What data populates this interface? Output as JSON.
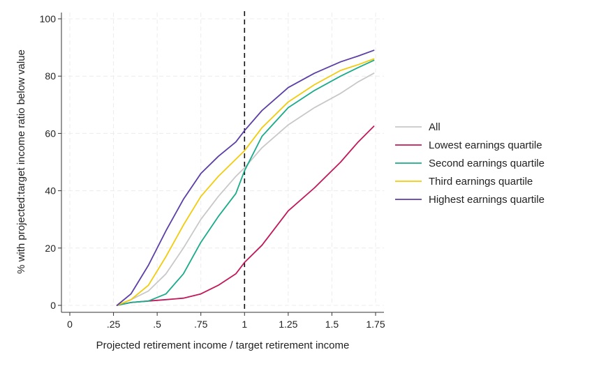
{
  "chart_data": {
    "type": "line",
    "title": "",
    "xlabel": "Projected retirement income / target retirement income",
    "ylabel": "% with projected:target income ratio below value",
    "xlim": [
      0,
      1.75
    ],
    "ylim": [
      0,
      100
    ],
    "x_ticks": [
      0,
      0.25,
      0.5,
      0.75,
      1,
      1.25,
      1.5,
      1.75
    ],
    "x_tick_labels": [
      "0",
      ".25",
      ".5",
      ".75",
      "1",
      "1.25",
      "1.5",
      "1.75"
    ],
    "y_ticks": [
      0,
      20,
      40,
      60,
      80,
      100
    ],
    "y_tick_labels": [
      "0",
      "20",
      "40",
      "60",
      "80",
      "100"
    ],
    "grid": true,
    "reference_line": {
      "x": 1,
      "style": "dashed"
    },
    "legend_position": "right",
    "x": [
      0.27,
      0.35,
      0.45,
      0.55,
      0.65,
      0.75,
      0.85,
      0.95,
      1.0,
      1.1,
      1.25,
      1.4,
      1.55,
      1.65,
      1.74
    ],
    "series": [
      {
        "name": "All",
        "color": "#c8c8c8",
        "values": [
          0,
          2,
          5,
          11,
          20,
          30,
          38,
          45,
          48,
          55,
          63,
          69,
          74,
          78,
          81
        ]
      },
      {
        "name": "Lowest earnings quartile",
        "color": "#c2185b",
        "values": [
          0,
          1,
          1.5,
          2,
          2.5,
          4,
          7,
          11,
          15,
          21,
          33,
          41,
          50,
          57,
          62.5
        ]
      },
      {
        "name": "Second earnings quartile",
        "color": "#1aab8a",
        "values": [
          0,
          1,
          1.5,
          4,
          11,
          22,
          31,
          39,
          47,
          59,
          69,
          75,
          80,
          83,
          85.5
        ]
      },
      {
        "name": "Third earnings quartile",
        "color": "#f2cc0c",
        "values": [
          0,
          2,
          7,
          17,
          28,
          38,
          45,
          51,
          54,
          62,
          71,
          77,
          82,
          84,
          86
        ]
      },
      {
        "name": "Highest earnings quartile",
        "color": "#5b3ea6",
        "values": [
          0,
          4,
          14,
          26,
          37,
          46,
          52,
          57,
          61,
          68,
          76,
          81,
          85,
          87,
          89
        ]
      }
    ]
  }
}
